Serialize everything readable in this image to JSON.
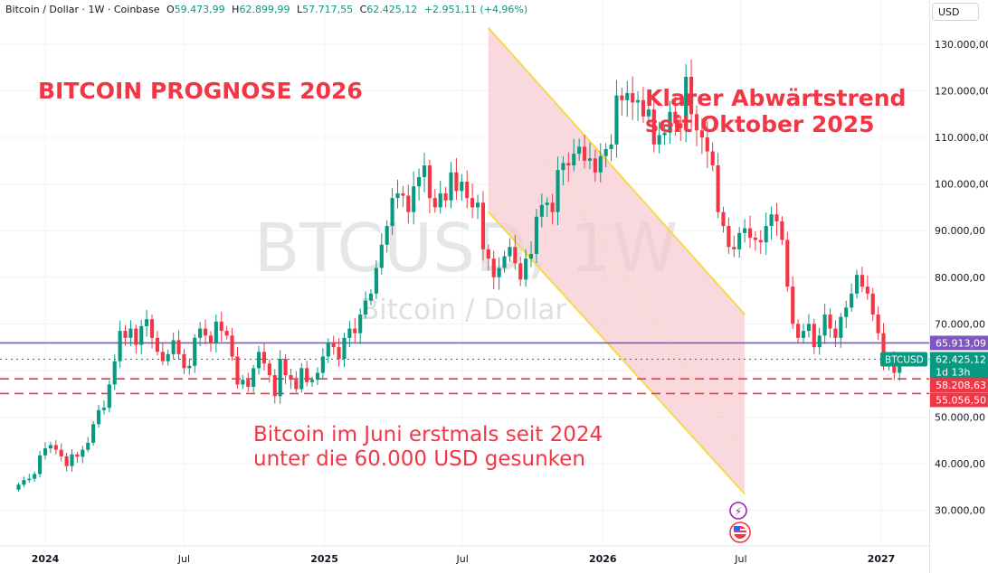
{
  "header": {
    "symbol": "Bitcoin / Dollar · 1W · Coinbase",
    "o_label": "O",
    "o_value": "59.473,99",
    "h_label": "H",
    "h_value": "62.899,99",
    "l_label": "L",
    "l_value": "57.717,55",
    "c_label": "C",
    "c_value": "62.425,12",
    "change": "+2.951,11 (+4,96%)",
    "currency_button": "USD"
  },
  "watermark": {
    "ticker": "BTCUSD, 1W",
    "name": "Bitcoin / Dollar"
  },
  "annotations": {
    "title": "BITCOIN PROGNOSE 2026",
    "trend_line1": "Klarer Abwärtstrend",
    "trend_line2": "seit Oktober 2025",
    "june_line1": "Bitcoin im Juni erstmals seit 2024",
    "june_line2": "unter die 60.000 USD gesunken"
  },
  "colors": {
    "up": "#089981",
    "down": "#f23645",
    "channel_fill": "#f7c5cc",
    "channel_line": "#f5d94a",
    "level_line": "#7e57c2",
    "dashed": "#f23645",
    "price_line": "#089981"
  },
  "chart_data": {
    "type": "candlestick",
    "y_axis_ticks": [
      "130.000,00",
      "120.000,00",
      "110.000,00",
      "100.000,00",
      "90.000,00",
      "80.000,00",
      "70.000,00",
      "60.000,00",
      "50.000,00",
      "40.000,00",
      "30.000,00"
    ],
    "x_axis_ticks": [
      "2024",
      "Jul",
      "2025",
      "Jul",
      "2026",
      "Jul",
      "2027"
    ],
    "ylim": [
      27000,
      133000
    ],
    "price_labels": {
      "level": "65.913,09",
      "symbol": "BTCUSD",
      "current": "62.425,12",
      "countdown": "1d 13h",
      "dashed1": "58.208,63",
      "dashed2": "55.056,50"
    },
    "levels": {
      "horizontal": 65913.09,
      "current": 62425.12,
      "dashed1": 58208.63,
      "dashed2": 55056.5
    },
    "channel": {
      "upper_start": [
        "2025-08-04",
        133500
      ],
      "upper_end": [
        "2026-07-06",
        72000
      ],
      "lower_start": [
        "2025-08-04",
        94000
      ],
      "lower_end": [
        "2026-07-06",
        33500
      ]
    },
    "x_start": "2023-11-27",
    "closes": [
      35500,
      36500,
      36800,
      37800,
      41800,
      43300,
      44000,
      43000,
      41600,
      39500,
      42000,
      41500,
      43000,
      44500,
      48500,
      51500,
      52000,
      57000,
      62000,
      68500,
      67000,
      69000,
      65500,
      69500,
      71000,
      67000,
      64000,
      62000,
      63500,
      66500,
      63500,
      60500,
      61000,
      67000,
      69000,
      67500,
      66000,
      70500,
      68500,
      67500,
      63000,
      57000,
      58000,
      56500,
      60500,
      64000,
      61500,
      59000,
      54500,
      62500,
      59000,
      58000,
      56000,
      60500,
      57500,
      58000,
      59500,
      63000,
      66000,
      65000,
      62500,
      67000,
      69000,
      68000,
      72000,
      75000,
      76500,
      82000,
      87000,
      91000,
      97000,
      98000,
      97500,
      94000,
      99500,
      101500,
      104000,
      97000,
      95000,
      98000,
      96500,
      102500,
      98500,
      100500,
      97000,
      95000,
      96000,
      86000,
      84000,
      80000,
      82000,
      84500,
      86500,
      83000,
      79500,
      84000,
      85000,
      93000,
      95500,
      96000,
      94000,
      103000,
      104500,
      104000,
      106500,
      108000,
      105000,
      105500,
      102500,
      106000,
      107500,
      108500,
      119000,
      118000,
      119500,
      117500,
      118000,
      114500,
      116000,
      108500,
      110500,
      111000,
      115500,
      113000,
      112000,
      123000,
      115000,
      111500,
      110000,
      107000,
      104000,
      94000,
      91000,
      86500,
      86000,
      89500,
      90500,
      88500,
      88000,
      87500,
      91000,
      93500,
      92000,
      88000,
      78000,
      70000,
      67000,
      68500,
      70000,
      65000,
      67500,
      72000,
      69000,
      67000,
      71500,
      73500,
      76500,
      80500,
      78000,
      76500,
      72000,
      68000,
      61500,
      62500,
      59500,
      62425
    ]
  }
}
